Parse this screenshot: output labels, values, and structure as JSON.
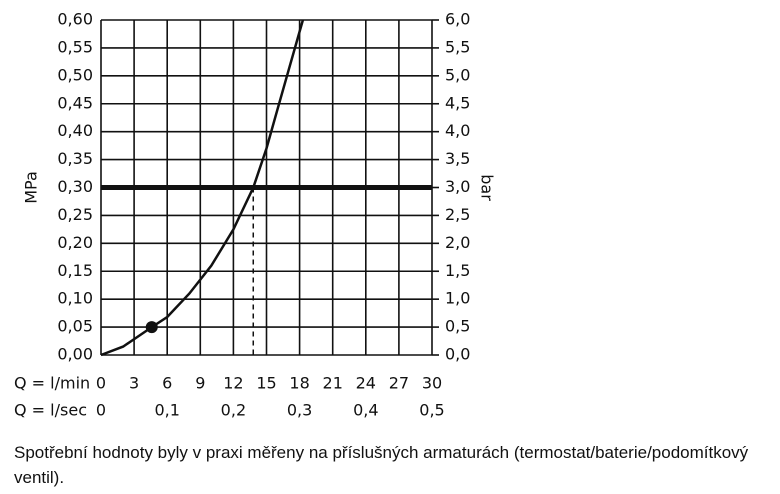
{
  "chart_data": {
    "type": "line",
    "ylabel": "MPa",
    "y2label": "bar",
    "xlabel": "Q = l/min",
    "x2label": "Q = l/sec",
    "xlim": [
      0,
      30
    ],
    "xticks": [
      0,
      3,
      6,
      9,
      12,
      15,
      18,
      21,
      24,
      27,
      30
    ],
    "x2lim": [
      0,
      0.5
    ],
    "x2ticks": [
      0,
      {
        "value": 0.1,
        "label": "0,1"
      },
      {
        "value": 0.2,
        "label": "0,2"
      },
      {
        "value": 0.3,
        "label": "0,3"
      },
      {
        "value": 0.4,
        "label": "0,4"
      },
      {
        "value": 0.5,
        "label": "0,5"
      }
    ],
    "ylim": [
      0,
      0.6
    ],
    "yticks": [
      {
        "value": 0,
        "label": "0,00"
      },
      {
        "value": 0.05,
        "label": "0,05"
      },
      {
        "value": 0.1,
        "label": "0,10"
      },
      {
        "value": 0.15,
        "label": "0,15"
      },
      {
        "value": 0.2,
        "label": "0,20"
      },
      {
        "value": 0.25,
        "label": "0,25"
      },
      {
        "value": 0.3,
        "label": "0,30"
      },
      {
        "value": 0.35,
        "label": "0,35"
      },
      {
        "value": 0.4,
        "label": "0,40"
      },
      {
        "value": 0.45,
        "label": "0,45"
      },
      {
        "value": 0.5,
        "label": "0,50"
      },
      {
        "value": 0.55,
        "label": "0,55"
      },
      {
        "value": 0.6,
        "label": "0,60"
      }
    ],
    "y2lim": [
      0,
      6
    ],
    "y2ticks": [
      {
        "value": 0,
        "label": "0,0"
      },
      {
        "value": 0.5,
        "label": "0,5"
      },
      {
        "value": 1,
        "label": "1,0"
      },
      {
        "value": 1.5,
        "label": "1,5"
      },
      {
        "value": 2,
        "label": "2,0"
      },
      {
        "value": 2.5,
        "label": "2,5"
      },
      {
        "value": 3,
        "label": "3,0"
      },
      {
        "value": 3.5,
        "label": "3,5"
      },
      {
        "value": 4,
        "label": "4,0"
      },
      {
        "value": 4.5,
        "label": "4,5"
      },
      {
        "value": 5,
        "label": "5,0"
      },
      {
        "value": 5.5,
        "label": "5,5"
      },
      {
        "value": 6,
        "label": "6,0"
      }
    ],
    "grid": true,
    "x": [
      0,
      2,
      4.6,
      6,
      8,
      10,
      12,
      13.8,
      15,
      16,
      17,
      18.3
    ],
    "values": [
      0,
      0.015,
      0.05,
      0.068,
      0.11,
      0.16,
      0.225,
      0.3,
      0.37,
      0.44,
      0.51,
      0.6
    ],
    "color": "#111111",
    "reference_y": 0.3,
    "reference_x": 13.8,
    "marker": {
      "x": 4.6,
      "y": 0.05
    },
    "note": "Spotřební hodnoty byly v praxi měřeny na příslušných armaturách (termostat/baterie/podomítkový ventil)."
  }
}
